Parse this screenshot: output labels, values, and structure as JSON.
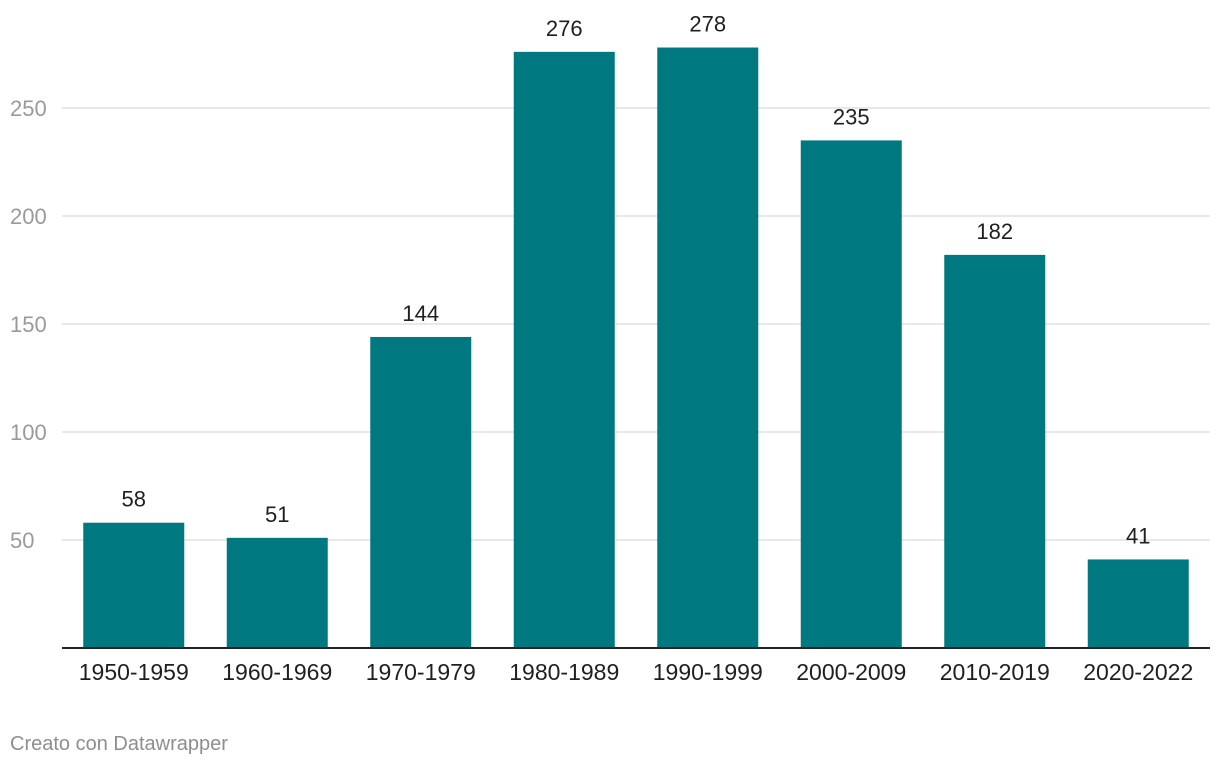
{
  "chart_data": {
    "type": "bar",
    "categories": [
      "1950-1959",
      "1960-1969",
      "1970-1979",
      "1980-1989",
      "1990-1999",
      "2000-2009",
      "2010-2019",
      "2020-2022"
    ],
    "values": [
      58,
      51,
      144,
      276,
      278,
      235,
      182,
      41
    ],
    "yticks": [
      50,
      100,
      150,
      200,
      250
    ],
    "ylim": [
      0,
      300
    ],
    "grid": true,
    "bar_color": "#00787f",
    "data_labels": true
  },
  "footer": {
    "credit": "Creato con Datawrapper"
  }
}
